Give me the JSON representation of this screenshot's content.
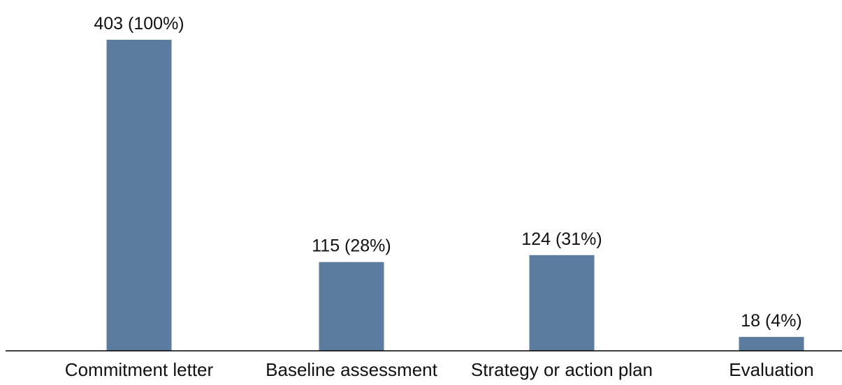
{
  "chart_data": {
    "type": "bar",
    "categories": [
      "Commitment letter",
      "Baseline assessment",
      "Strategy or action plan",
      "Evaluation"
    ],
    "values": [
      403,
      115,
      124,
      18
    ],
    "data_labels": [
      "403 (100%)",
      "115 (28%)",
      "124 (31%)",
      "18 (4%)"
    ],
    "ylim": [
      0,
      403
    ],
    "grid": false,
    "legend": "none",
    "colors": {
      "bar": "#5b7b9f",
      "axis": "#000000",
      "text": "#111111"
    }
  }
}
